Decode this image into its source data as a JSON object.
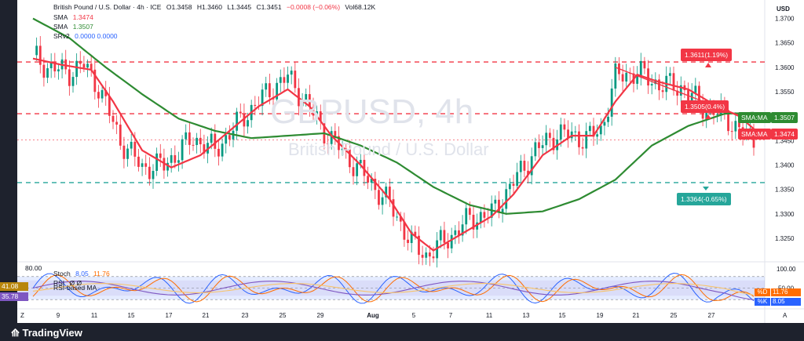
{
  "header": {
    "symbol": "British Pound / U.S. Dollar · 4h · ICE",
    "o": "O1.3458",
    "h": "H1.3460",
    "l": "L1.3445",
    "c": "C1.3451",
    "chg": "−0.0008 (−0.06%)",
    "vol": "Vol68.12K",
    "sma1_label": "SMA",
    "sma1_value": "1.3474",
    "sma2_label": "SMA",
    "sma2_value": "1.3507",
    "srv2_label": "SRv2",
    "srv2_values": "0.0000  0.0000"
  },
  "watermark": {
    "ticker": "GBPUSD, 4h",
    "name": "British Pound / U.S. Dollar"
  },
  "axis": {
    "currency": "USD",
    "price_ticks": [
      "1.3700",
      "1.3650",
      "1.3600",
      "1.3550",
      "1.3500",
      "1.3450",
      "1.3400",
      "1.3350",
      "1.3300",
      "1.3250"
    ],
    "date_ticks": [
      "9",
      "11",
      "15",
      "17",
      "21",
      "23",
      "25",
      "29",
      "Aug",
      "5",
      "7",
      "11",
      "13",
      "15",
      "19",
      "21",
      "25",
      "27"
    ],
    "left_mark": "Z",
    "right_mark": "A"
  },
  "levels": {
    "resistance_1": "1.3611(1.19%)",
    "resistance_2": "1.3505(0.4%)",
    "support_1": "1.3364(-0.65%)"
  },
  "price_tags": {
    "sma_long": {
      "label": "SMA:MA",
      "value": "1.3507"
    },
    "sma_short": {
      "label": "SMA:MA",
      "value": "1.3474"
    }
  },
  "oscillator": {
    "top_level": "80.00",
    "stoch_label": "Stoch",
    "stoch_k": "8.05",
    "stoch_d": "11.76",
    "rsi_label": "RSI",
    "rsi_ma_label": "RSI-based MA",
    "rsi_extra": "Ø  Ø",
    "rsi_ma_value": "41.08",
    "rsi_value": "35.78",
    "axis_100": "100.00",
    "axis_50": "50.00",
    "d_tag": "%D",
    "k_tag": "%K",
    "d_value": "11.76",
    "k_value": "8.05"
  },
  "footer": {
    "logo": "TradingView"
  },
  "colors": {
    "bull": "#089981",
    "bear": "#f23645",
    "sma_fast": "#f23645",
    "sma_slow": "#2e8b32",
    "support": "#26a69a",
    "stoch_k": "#2962ff",
    "stoch_d": "#ff6d00",
    "rsi": "#7e57c2",
    "rsi_ma": "#f7c46c"
  },
  "chart_data": {
    "type": "candlestick",
    "timeframe": "4h",
    "y_range": [
      1.3205,
      1.3725
    ],
    "x_labels": [
      "9",
      "11",
      "15",
      "17",
      "21",
      "23",
      "25",
      "29",
      "Aug",
      "5",
      "7",
      "11",
      "13",
      "15",
      "19",
      "21",
      "25",
      "27"
    ],
    "approx_close_path": [
      [
        0,
        1.3625
      ],
      [
        4,
        1.36
      ],
      [
        10,
        1.359
      ],
      [
        14,
        1.3605
      ],
      [
        18,
        1.356
      ],
      [
        24,
        1.345
      ],
      [
        30,
        1.3395
      ],
      [
        36,
        1.34
      ],
      [
        44,
        1.3455
      ],
      [
        50,
        1.343
      ],
      [
        58,
        1.35
      ],
      [
        66,
        1.356
      ],
      [
        70,
        1.358
      ],
      [
        74,
        1.354
      ],
      [
        80,
        1.347
      ],
      [
        86,
        1.342
      ],
      [
        92,
        1.337
      ],
      [
        98,
        1.332
      ],
      [
        104,
        1.324
      ],
      [
        108,
        1.3215
      ],
      [
        114,
        1.325
      ],
      [
        120,
        1.329
      ],
      [
        126,
        1.33
      ],
      [
        132,
        1.3365
      ],
      [
        138,
        1.343
      ],
      [
        144,
        1.3465
      ],
      [
        152,
        1.3455
      ],
      [
        156,
        1.347
      ],
      [
        160,
        1.358
      ],
      [
        166,
        1.359
      ],
      [
        172,
        1.3565
      ],
      [
        178,
        1.356
      ],
      [
        184,
        1.352
      ],
      [
        190,
        1.35
      ],
      [
        196,
        1.346
      ],
      [
        198,
        1.3451
      ]
    ],
    "sma_short_path": [
      [
        0,
        1.3618
      ],
      [
        8,
        1.3605
      ],
      [
        16,
        1.3595
      ],
      [
        22,
        1.353
      ],
      [
        30,
        1.343
      ],
      [
        38,
        1.3395
      ],
      [
        46,
        1.342
      ],
      [
        54,
        1.347
      ],
      [
        62,
        1.352
      ],
      [
        70,
        1.3555
      ],
      [
        76,
        1.352
      ],
      [
        82,
        1.346
      ],
      [
        90,
        1.34
      ],
      [
        98,
        1.333
      ],
      [
        104,
        1.326
      ],
      [
        110,
        1.3225
      ],
      [
        118,
        1.326
      ],
      [
        126,
        1.3295
      ],
      [
        132,
        1.334
      ],
      [
        140,
        1.342
      ],
      [
        148,
        1.346
      ],
      [
        154,
        1.346
      ],
      [
        160,
        1.353
      ],
      [
        166,
        1.3585
      ],
      [
        172,
        1.357
      ],
      [
        180,
        1.3555
      ],
      [
        188,
        1.352
      ],
      [
        194,
        1.35
      ],
      [
        198,
        1.3474
      ]
    ],
    "sma_long_path": [
      [
        0,
        1.37
      ],
      [
        10,
        1.366
      ],
      [
        20,
        1.36
      ],
      [
        30,
        1.3545
      ],
      [
        40,
        1.3495
      ],
      [
        50,
        1.347
      ],
      [
        60,
        1.3455
      ],
      [
        70,
        1.346
      ],
      [
        80,
        1.3465
      ],
      [
        90,
        1.344
      ],
      [
        100,
        1.3405
      ],
      [
        110,
        1.3355
      ],
      [
        120,
        1.3318
      ],
      [
        130,
        1.33
      ],
      [
        140,
        1.3305
      ],
      [
        150,
        1.333
      ],
      [
        160,
        1.337
      ],
      [
        170,
        1.344
      ],
      [
        180,
        1.348
      ],
      [
        190,
        1.3505
      ],
      [
        198,
        1.3507
      ]
    ],
    "trendline": [
      [
        160,
        1.36
      ],
      [
        198,
        1.349
      ]
    ],
    "resistance_levels": [
      1.3611,
      1.3505
    ],
    "support_levels": [
      1.3364
    ],
    "indicator": {
      "range": [
        0,
        100
      ],
      "stoch_k_last": 8.05,
      "stoch_d_last": 11.76,
      "rsi_last": 35.78,
      "rsi_ma_last": 41.08
    }
  }
}
